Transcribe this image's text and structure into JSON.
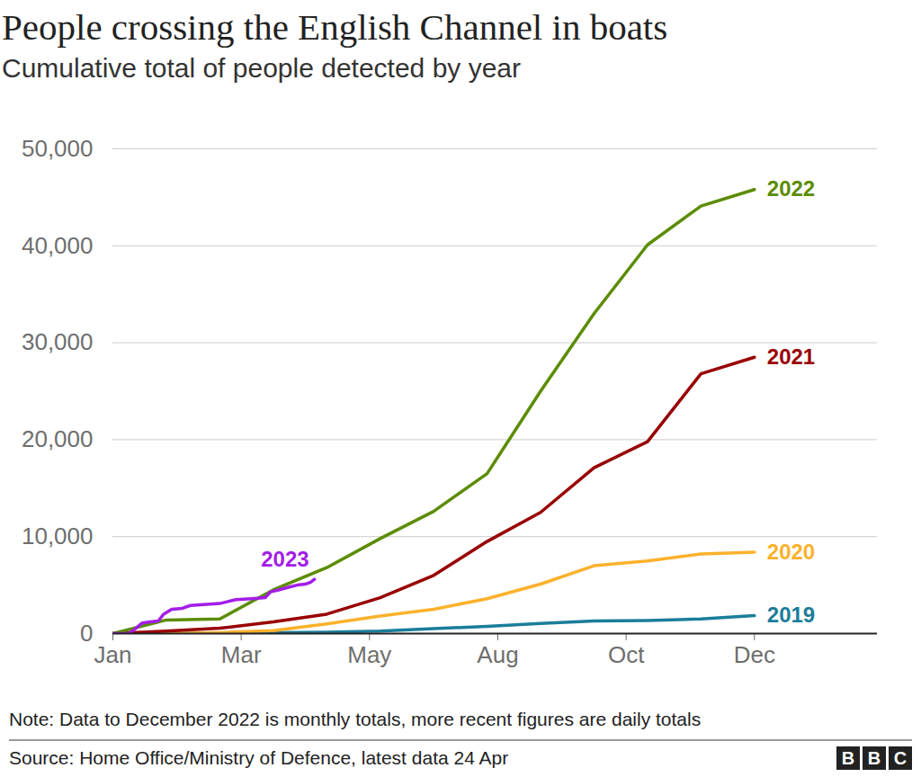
{
  "chart_data": {
    "type": "line",
    "title": "People crossing the English Channel in boats",
    "subtitle": "Cumulative total of people detected by year",
    "note": "Note: Data to December 2022 is monthly totals, more recent figures are daily totals",
    "source": "Source: Home Office/Ministry of Defence, latest data 24 Apr",
    "logo": "BBC",
    "xlim": [
      0,
      14.3
    ],
    "xticks": [
      {
        "value": 0,
        "label": "Jan"
      },
      {
        "value": 2.4,
        "label": "Mar"
      },
      {
        "value": 4.8,
        "label": "May"
      },
      {
        "value": 7.2,
        "label": "Aug"
      },
      {
        "value": 9.6,
        "label": "Oct"
      },
      {
        "value": 12,
        "label": "Dec"
      }
    ],
    "ylim": [
      0,
      50000
    ],
    "yticks": [
      0,
      {
        "value": 10000,
        "label": "10,000"
      },
      {
        "value": 20000,
        "label": "20,000"
      },
      {
        "value": 30000,
        "label": "30,000"
      },
      {
        "value": 40000,
        "label": "40,000"
      },
      {
        "value": 50000,
        "label": "50,000"
      }
    ],
    "grid": true,
    "series": [
      {
        "name": "2019",
        "color": "#1b7d9a",
        "x": [
          0,
          1,
          2,
          3,
          4,
          5,
          6,
          7,
          8,
          9,
          10,
          11,
          12
        ],
        "values": [
          0,
          0,
          50,
          100,
          150,
          250,
          500,
          750,
          1050,
          1300,
          1350,
          1500,
          1850
        ]
      },
      {
        "name": "2020",
        "color": "#fbb12b",
        "x": [
          0,
          1,
          2,
          3,
          4,
          5,
          6,
          7,
          8,
          9,
          10,
          11,
          12
        ],
        "values": [
          0,
          0,
          100,
          300,
          1000,
          1800,
          2500,
          3600,
          5100,
          7000,
          7500,
          8200,
          8400
        ]
      },
      {
        "name": "2021",
        "color": "#990000",
        "x": [
          0,
          1,
          2,
          3,
          4,
          5,
          6,
          7,
          8,
          9,
          10,
          11,
          12
        ],
        "values": [
          0,
          250,
          550,
          1200,
          2000,
          3700,
          6000,
          9500,
          12500,
          17100,
          19800,
          26800,
          28500
        ]
      },
      {
        "name": "2022",
        "color": "#5b8c00",
        "x": [
          0,
          1,
          2,
          3,
          4,
          5,
          6,
          7,
          8,
          9,
          10,
          11,
          12
        ],
        "values": [
          0,
          1400,
          1500,
          4500,
          6800,
          9800,
          12600,
          16500,
          25000,
          33000,
          40100,
          44100,
          45800
        ]
      },
      {
        "name": "2023",
        "color": "#a31de8",
        "x": [
          0,
          0.3,
          0.4,
          0.55,
          0.7,
          0.85,
          0.95,
          1.1,
          1.3,
          1.45,
          1.7,
          2.0,
          2.3,
          2.6,
          2.85,
          2.95,
          3.1,
          3.3,
          3.45,
          3.6,
          3.7,
          3.77
        ],
        "values": [
          0,
          0,
          400,
          1100,
          1200,
          1300,
          2000,
          2500,
          2600,
          2900,
          3000,
          3100,
          3500,
          3600,
          3700,
          4300,
          4500,
          4800,
          5000,
          5100,
          5300,
          5600
        ]
      }
    ]
  }
}
